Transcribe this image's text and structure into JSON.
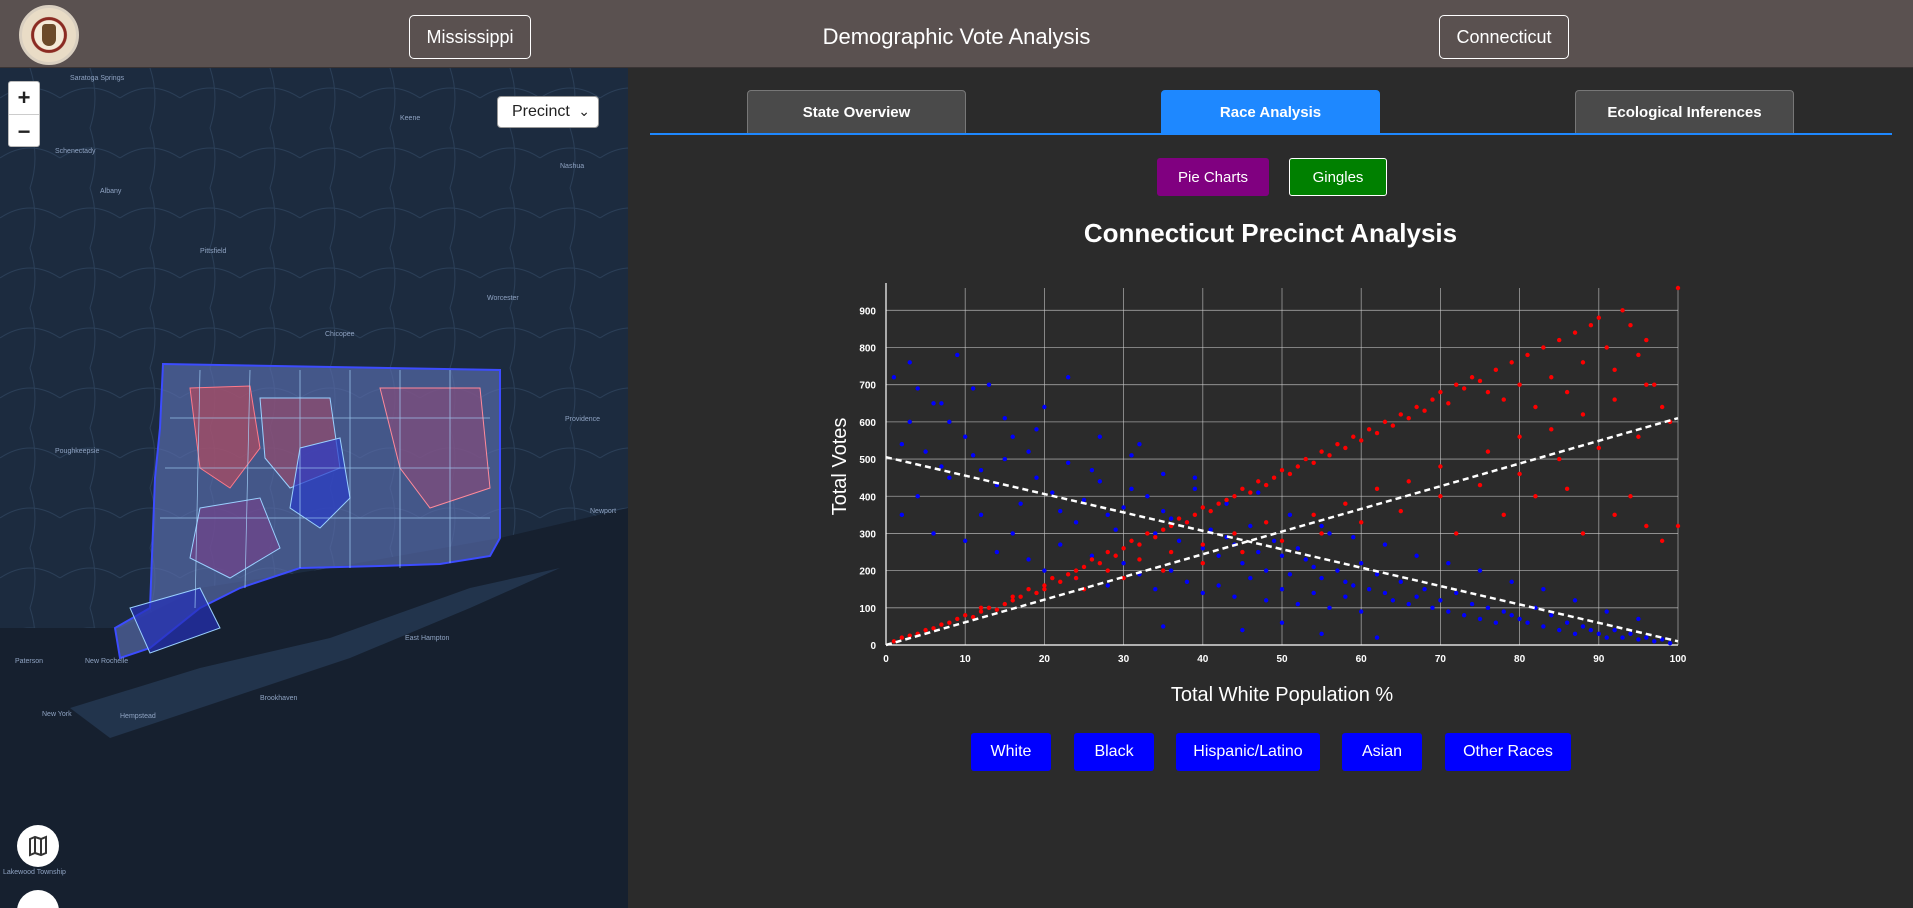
{
  "header": {
    "title": "Demographic Vote Analysis",
    "left_state": "Mississippi",
    "right_state": "Connecticut"
  },
  "map": {
    "zoom_in": "+",
    "zoom_out": "−",
    "level_select": "Precinct",
    "place_labels": [
      {
        "name": "Saratoga Springs"
      },
      {
        "name": "Schenectady"
      },
      {
        "name": "Albany"
      },
      {
        "name": "Pittsfield"
      },
      {
        "name": "Keene"
      },
      {
        "name": "Nashua"
      },
      {
        "name": "Worcester"
      },
      {
        "name": "Chicopee"
      },
      {
        "name": "Providence"
      },
      {
        "name": "Poughkeepsie"
      },
      {
        "name": "Newport"
      },
      {
        "name": "New Rochelle"
      },
      {
        "name": "New York"
      },
      {
        "name": "Hempstead"
      },
      {
        "name": "Brookhaven"
      },
      {
        "name": "Paterson"
      },
      {
        "name": "East Hampton"
      },
      {
        "name": "Lakewood Township"
      }
    ]
  },
  "tabs": [
    {
      "label": "State Overview",
      "active": false
    },
    {
      "label": "Race Analysis",
      "active": true
    },
    {
      "label": "Ecological Inferences",
      "active": false
    }
  ],
  "sub_buttons": [
    {
      "label": "Pie Charts",
      "color": "#800080"
    },
    {
      "label": "Gingles",
      "color": "#008000"
    }
  ],
  "colors": {
    "accent": "#1e88ff",
    "republican": "#ff0000",
    "democrat": "#0000ff",
    "race_button": "#0000ff"
  },
  "chart_data": {
    "type": "scatter",
    "title": "Connecticut Precinct Analysis",
    "xlabel": "Total White Population %",
    "ylabel": "Total Votes",
    "xlim": [
      0,
      100
    ],
    "ylim": [
      0,
      960
    ],
    "xticks": [
      "0",
      "10",
      "20",
      "30",
      "40",
      "50",
      "60",
      "70",
      "80",
      "90",
      "100"
    ],
    "yticks": [
      "0",
      "100",
      "200",
      "300",
      "400",
      "500",
      "600",
      "700",
      "800",
      "900"
    ],
    "grid": true,
    "series": [
      {
        "color": "#0000ff",
        "trend": [
          [
            0,
            505
          ],
          [
            100,
            10
          ]
        ],
        "points": [
          [
            1,
            720
          ],
          [
            3,
            760
          ],
          [
            4,
            690
          ],
          [
            6,
            650
          ],
          [
            8,
            600
          ],
          [
            2,
            540
          ],
          [
            5,
            520
          ],
          [
            7,
            480
          ],
          [
            9,
            780
          ],
          [
            10,
            560
          ],
          [
            11,
            510
          ],
          [
            12,
            470
          ],
          [
            13,
            700
          ],
          [
            14,
            430
          ],
          [
            15,
            610
          ],
          [
            16,
            560
          ],
          [
            17,
            380
          ],
          [
            18,
            520
          ],
          [
            19,
            450
          ],
          [
            20,
            640
          ],
          [
            21,
            410
          ],
          [
            22,
            360
          ],
          [
            23,
            720
          ],
          [
            24,
            330
          ],
          [
            25,
            390
          ],
          [
            26,
            470
          ],
          [
            27,
            440
          ],
          [
            28,
            350
          ],
          [
            29,
            310
          ],
          [
            30,
            370
          ],
          [
            31,
            420
          ],
          [
            32,
            540
          ],
          [
            33,
            400
          ],
          [
            34,
            300
          ],
          [
            35,
            360
          ],
          [
            36,
            340
          ],
          [
            37,
            280
          ],
          [
            38,
            330
          ],
          [
            39,
            450
          ],
          [
            40,
            260
          ],
          [
            41,
            310
          ],
          [
            42,
            240
          ],
          [
            43,
            290
          ],
          [
            44,
            270
          ],
          [
            45,
            220
          ],
          [
            46,
            320
          ],
          [
            47,
            250
          ],
          [
            48,
            200
          ],
          [
            49,
            280
          ],
          [
            50,
            240
          ],
          [
            51,
            190
          ],
          [
            52,
            260
          ],
          [
            53,
            230
          ],
          [
            54,
            210
          ],
          [
            55,
            180
          ],
          [
            56,
            300
          ],
          [
            57,
            200
          ],
          [
            58,
            170
          ],
          [
            59,
            160
          ],
          [
            60,
            220
          ],
          [
            61,
            150
          ],
          [
            62,
            190
          ],
          [
            63,
            140
          ],
          [
            64,
            120
          ],
          [
            65,
            170
          ],
          [
            66,
            110
          ],
          [
            67,
            130
          ],
          [
            68,
            150
          ],
          [
            69,
            100
          ],
          [
            70,
            120
          ],
          [
            71,
            90
          ],
          [
            72,
            140
          ],
          [
            73,
            80
          ],
          [
            74,
            110
          ],
          [
            75,
            70
          ],
          [
            76,
            100
          ],
          [
            77,
            60
          ],
          [
            78,
            90
          ],
          [
            79,
            80
          ],
          [
            80,
            70
          ],
          [
            81,
            60
          ],
          [
            82,
            100
          ],
          [
            83,
            50
          ],
          [
            84,
            80
          ],
          [
            85,
            40
          ],
          [
            86,
            60
          ],
          [
            87,
            30
          ],
          [
            88,
            50
          ],
          [
            89,
            40
          ],
          [
            90,
            30
          ],
          [
            91,
            20
          ],
          [
            92,
            40
          ],
          [
            93,
            20
          ],
          [
            94,
            30
          ],
          [
            95,
            15
          ],
          [
            96,
            20
          ],
          [
            97,
            10
          ],
          [
            98,
            15
          ],
          [
            99,
            5
          ],
          [
            2,
            350
          ],
          [
            4,
            400
          ],
          [
            6,
            300
          ],
          [
            8,
            450
          ],
          [
            10,
            280
          ],
          [
            12,
            350
          ],
          [
            14,
            250
          ],
          [
            16,
            300
          ],
          [
            18,
            230
          ],
          [
            20,
            200
          ],
          [
            22,
            270
          ],
          [
            24,
            180
          ],
          [
            26,
            240
          ],
          [
            28,
            160
          ],
          [
            30,
            220
          ],
          [
            32,
            190
          ],
          [
            34,
            150
          ],
          [
            36,
            200
          ],
          [
            38,
            170
          ],
          [
            40,
            140
          ],
          [
            42,
            160
          ],
          [
            44,
            130
          ],
          [
            46,
            180
          ],
          [
            48,
            120
          ],
          [
            50,
            150
          ],
          [
            52,
            110
          ],
          [
            54,
            140
          ],
          [
            56,
            100
          ],
          [
            58,
            130
          ],
          [
            60,
            90
          ],
          [
            3,
            600
          ],
          [
            7,
            650
          ],
          [
            11,
            690
          ],
          [
            15,
            500
          ],
          [
            19,
            580
          ],
          [
            23,
            490
          ],
          [
            27,
            560
          ],
          [
            31,
            510
          ],
          [
            35,
            460
          ],
          [
            39,
            420
          ],
          [
            43,
            380
          ],
          [
            47,
            410
          ],
          [
            51,
            350
          ],
          [
            55,
            320
          ],
          [
            59,
            290
          ],
          [
            63,
            270
          ],
          [
            67,
            240
          ],
          [
            71,
            220
          ],
          [
            75,
            200
          ],
          [
            79,
            170
          ],
          [
            83,
            150
          ],
          [
            87,
            120
          ],
          [
            91,
            90
          ],
          [
            95,
            70
          ],
          [
            45,
            40
          ],
          [
            50,
            60
          ],
          [
            55,
            30
          ],
          [
            62,
            20
          ],
          [
            35,
            50
          ]
        ]
      },
      {
        "color": "#ff0000",
        "trend": [
          [
            0,
            0
          ],
          [
            100,
            610
          ]
        ],
        "points": [
          [
            1,
            10
          ],
          [
            2,
            20
          ],
          [
            3,
            25
          ],
          [
            4,
            30
          ],
          [
            5,
            40
          ],
          [
            6,
            45
          ],
          [
            7,
            55
          ],
          [
            8,
            60
          ],
          [
            9,
            70
          ],
          [
            10,
            80
          ],
          [
            11,
            75
          ],
          [
            12,
            90
          ],
          [
            13,
            100
          ],
          [
            14,
            95
          ],
          [
            15,
            110
          ],
          [
            16,
            120
          ],
          [
            17,
            130
          ],
          [
            18,
            150
          ],
          [
            19,
            140
          ],
          [
            20,
            160
          ],
          [
            21,
            180
          ],
          [
            22,
            170
          ],
          [
            23,
            190
          ],
          [
            24,
            200
          ],
          [
            25,
            210
          ],
          [
            26,
            230
          ],
          [
            27,
            220
          ],
          [
            28,
            250
          ],
          [
            29,
            240
          ],
          [
            30,
            260
          ],
          [
            31,
            280
          ],
          [
            32,
            270
          ],
          [
            33,
            300
          ],
          [
            34,
            290
          ],
          [
            35,
            310
          ],
          [
            36,
            320
          ],
          [
            37,
            340
          ],
          [
            38,
            330
          ],
          [
            39,
            350
          ],
          [
            40,
            370
          ],
          [
            41,
            360
          ],
          [
            42,
            380
          ],
          [
            43,
            390
          ],
          [
            44,
            400
          ],
          [
            45,
            420
          ],
          [
            46,
            410
          ],
          [
            47,
            440
          ],
          [
            48,
            430
          ],
          [
            49,
            450
          ],
          [
            50,
            470
          ],
          [
            51,
            460
          ],
          [
            52,
            480
          ],
          [
            53,
            500
          ],
          [
            54,
            490
          ],
          [
            55,
            520
          ],
          [
            56,
            510
          ],
          [
            57,
            540
          ],
          [
            58,
            530
          ],
          [
            59,
            560
          ],
          [
            60,
            550
          ],
          [
            61,
            580
          ],
          [
            62,
            570
          ],
          [
            63,
            600
          ],
          [
            64,
            590
          ],
          [
            65,
            620
          ],
          [
            66,
            610
          ],
          [
            67,
            640
          ],
          [
            68,
            630
          ],
          [
            69,
            660
          ],
          [
            70,
            680
          ],
          [
            71,
            650
          ],
          [
            72,
            700
          ],
          [
            73,
            690
          ],
          [
            74,
            720
          ],
          [
            75,
            710
          ],
          [
            76,
            680
          ],
          [
            77,
            740
          ],
          [
            78,
            660
          ],
          [
            79,
            760
          ],
          [
            80,
            700
          ],
          [
            81,
            780
          ],
          [
            82,
            640
          ],
          [
            83,
            800
          ],
          [
            84,
            720
          ],
          [
            85,
            820
          ],
          [
            86,
            680
          ],
          [
            87,
            840
          ],
          [
            88,
            760
          ],
          [
            89,
            860
          ],
          [
            90,
            880
          ],
          [
            91,
            800
          ],
          [
            92,
            740
          ],
          [
            93,
            900
          ],
          [
            94,
            860
          ],
          [
            95,
            780
          ],
          [
            96,
            820
          ],
          [
            97,
            700
          ],
          [
            98,
            640
          ],
          [
            99,
            600
          ],
          [
            100,
            960
          ],
          [
            25,
            150
          ],
          [
            30,
            180
          ],
          [
            35,
            200
          ],
          [
            40,
            220
          ],
          [
            45,
            250
          ],
          [
            50,
            280
          ],
          [
            55,
            300
          ],
          [
            60,
            330
          ],
          [
            65,
            360
          ],
          [
            70,
            400
          ],
          [
            75,
            430
          ],
          [
            80,
            460
          ],
          [
            85,
            500
          ],
          [
            90,
            530
          ],
          [
            95,
            560
          ],
          [
            72,
            300
          ],
          [
            78,
            350
          ],
          [
            82,
            400
          ],
          [
            86,
            420
          ],
          [
            88,
            300
          ],
          [
            92,
            350
          ],
          [
            94,
            400
          ],
          [
            96,
            320
          ],
          [
            98,
            280
          ],
          [
            100,
            320
          ],
          [
            84,
            580
          ],
          [
            88,
            620
          ],
          [
            92,
            660
          ],
          [
            96,
            700
          ],
          [
            76,
            520
          ],
          [
            80,
            560
          ],
          [
            70,
            480
          ],
          [
            66,
            440
          ],
          [
            62,
            420
          ],
          [
            58,
            380
          ],
          [
            54,
            350
          ],
          [
            48,
            330
          ],
          [
            44,
            300
          ],
          [
            40,
            270
          ],
          [
            36,
            250
          ],
          [
            32,
            230
          ],
          [
            28,
            200
          ],
          [
            24,
            180
          ],
          [
            20,
            150
          ],
          [
            16,
            130
          ],
          [
            12,
            100
          ]
        ]
      }
    ]
  },
  "race_buttons": [
    "White",
    "Black",
    "Hispanic/Latino",
    "Asian",
    "Other Races"
  ]
}
